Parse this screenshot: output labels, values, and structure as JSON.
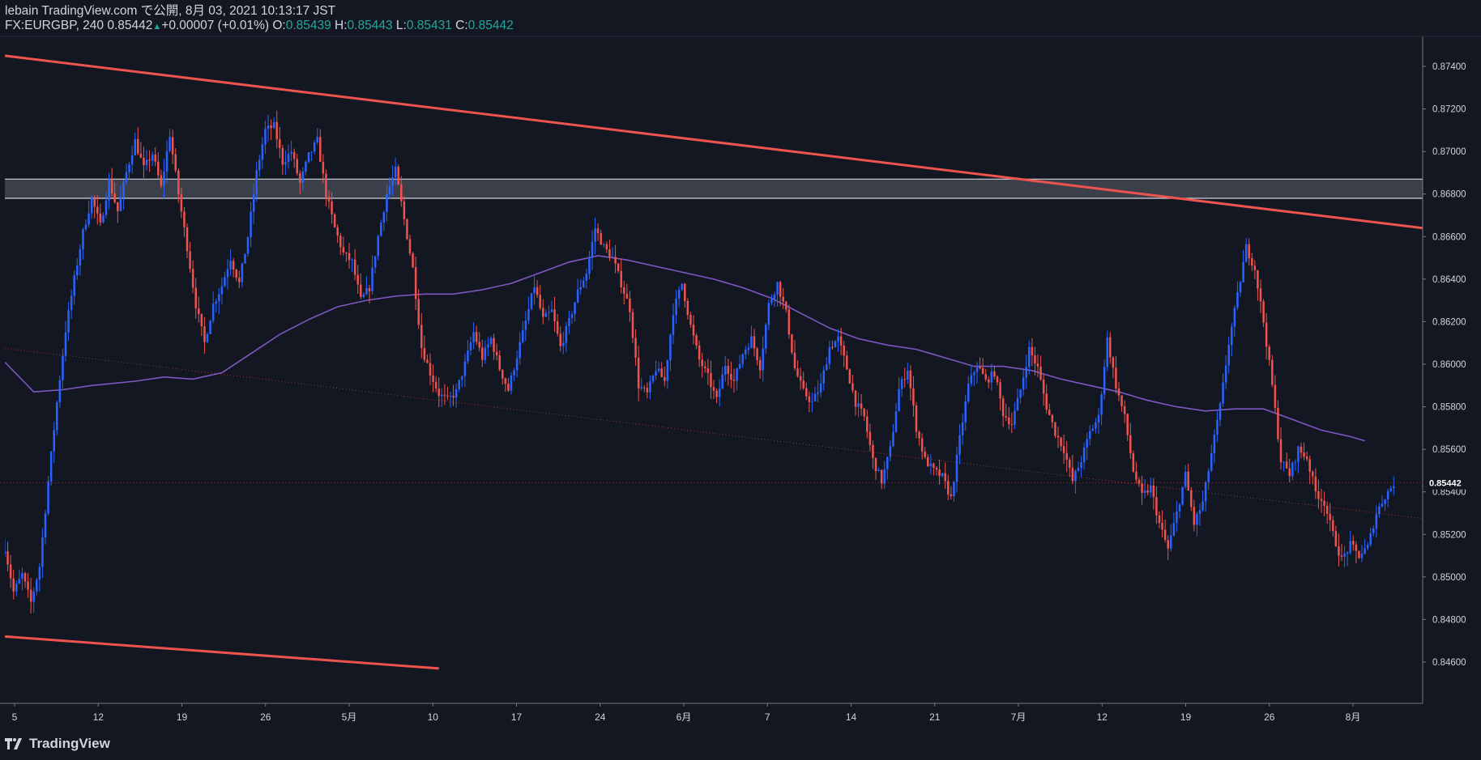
{
  "header": {
    "line1": "lebain TradingView.com で公開, 8月 03, 2021 10:13:17 JST",
    "symbol": "FX:EURGBP, 240",
    "last": "0.85442",
    "change": "+0.00007 (+0.01%)",
    "o_label": "O:",
    "o": "0.85439",
    "h_label": "H:",
    "h": "0.85443",
    "l_label": "L:",
    "l": "0.85431",
    "c_label": "C:",
    "c": "0.85442"
  },
  "brand": {
    "name": "TradingView",
    "icon": "tradingview-logo-icon"
  },
  "colors": {
    "background": "#131722",
    "up": "#2962ff",
    "down": "#ef5350",
    "trendline": "#ef5350",
    "ma": "#7e57c2",
    "zone_fill": "#434651",
    "zone_border": "#d1d4dc"
  },
  "chart_data": {
    "type": "candlestick",
    "symbol": "FX:EURGBP",
    "timeframe": "240",
    "ylim": [
      0.8452,
      0.8748
    ],
    "y_ticks": [
      "0.87400",
      "0.87200",
      "0.87000",
      "0.86800",
      "0.86600",
      "0.86400",
      "0.86200",
      "0.86000",
      "0.85800",
      "0.85600",
      "0.85400",
      "0.85200",
      "0.85000",
      "0.84800",
      "0.84600"
    ],
    "last_price_label": "0.85442",
    "x_ticks": [
      "5",
      "12",
      "19",
      "26",
      "5月",
      "10",
      "17",
      "24",
      "6月",
      "7",
      "14",
      "21",
      "7月",
      "12",
      "19",
      "26",
      "8月"
    ],
    "price_path": [
      [
        0,
        0.8514
      ],
      [
        3,
        0.8493
      ],
      [
        6,
        0.8501
      ],
      [
        9,
        0.8488
      ],
      [
        12,
        0.8505
      ],
      [
        15,
        0.8545
      ],
      [
        18,
        0.8582
      ],
      [
        21,
        0.8616
      ],
      [
        24,
        0.864
      ],
      [
        27,
        0.8662
      ],
      [
        30,
        0.8678
      ],
      [
        33,
        0.8665
      ],
      [
        36,
        0.8686
      ],
      [
        39,
        0.8672
      ],
      [
        42,
        0.869
      ],
      [
        45,
        0.8705
      ],
      [
        48,
        0.8692
      ],
      [
        51,
        0.8699
      ],
      [
        54,
        0.8683
      ],
      [
        57,
        0.8708
      ],
      [
        60,
        0.868
      ],
      [
        63,
        0.8655
      ],
      [
        66,
        0.8628
      ],
      [
        69,
        0.861
      ],
      [
        72,
        0.8628
      ],
      [
        75,
        0.8637
      ],
      [
        78,
        0.865
      ],
      [
        81,
        0.8638
      ],
      [
        84,
        0.866
      ],
      [
        87,
        0.869
      ],
      [
        90,
        0.871
      ],
      [
        93,
        0.8712
      ],
      [
        96,
        0.8695
      ],
      [
        99,
        0.87
      ],
      [
        102,
        0.8685
      ],
      [
        105,
        0.8698
      ],
      [
        108,
        0.8705
      ],
      [
        111,
        0.868
      ],
      [
        114,
        0.8664
      ],
      [
        117,
        0.8652
      ],
      [
        120,
        0.8648
      ],
      [
        123,
        0.863
      ],
      [
        126,
        0.8636
      ],
      [
        129,
        0.866
      ],
      [
        132,
        0.868
      ],
      [
        135,
        0.8691
      ],
      [
        138,
        0.8668
      ],
      [
        141,
        0.8645
      ],
      [
        144,
        0.8608
      ],
      [
        147,
        0.8596
      ],
      [
        150,
        0.8586
      ],
      [
        153,
        0.8583
      ],
      [
        156,
        0.8587
      ],
      [
        159,
        0.86
      ],
      [
        162,
        0.8615
      ],
      [
        165,
        0.8603
      ],
      [
        168,
        0.8612
      ],
      [
        171,
        0.8598
      ],
      [
        174,
        0.8588
      ],
      [
        177,
        0.8604
      ],
      [
        180,
        0.862
      ],
      [
        183,
        0.8637
      ],
      [
        186,
        0.8621
      ],
      [
        189,
        0.8625
      ],
      [
        192,
        0.8608
      ],
      [
        195,
        0.862
      ],
      [
        198,
        0.8634
      ],
      [
        201,
        0.8643
      ],
      [
        204,
        0.8664
      ],
      [
        207,
        0.8655
      ],
      [
        210,
        0.865
      ],
      [
        213,
        0.8638
      ],
      [
        216,
        0.8626
      ],
      [
        219,
        0.859
      ],
      [
        222,
        0.8586
      ],
      [
        225,
        0.8598
      ],
      [
        228,
        0.8592
      ],
      [
        231,
        0.8625
      ],
      [
        234,
        0.8638
      ],
      [
        237,
        0.8618
      ],
      [
        240,
        0.8602
      ],
      [
        243,
        0.8594
      ],
      [
        246,
        0.8583
      ],
      [
        249,
        0.86
      ],
      [
        252,
        0.8592
      ],
      [
        255,
        0.8605
      ],
      [
        258,
        0.8612
      ],
      [
        261,
        0.8599
      ],
      [
        264,
        0.8628
      ],
      [
        267,
        0.8638
      ],
      [
        270,
        0.8624
      ],
      [
        273,
        0.8598
      ],
      [
        276,
        0.8587
      ],
      [
        279,
        0.8582
      ],
      [
        282,
        0.859
      ],
      [
        285,
        0.8608
      ],
      [
        288,
        0.8612
      ],
      [
        291,
        0.8598
      ],
      [
        294,
        0.8582
      ],
      [
        297,
        0.8575
      ],
      [
        300,
        0.8555
      ],
      [
        303,
        0.8545
      ],
      [
        306,
        0.856
      ],
      [
        309,
        0.8588
      ],
      [
        312,
        0.8598
      ],
      [
        315,
        0.857
      ],
      [
        318,
        0.8555
      ],
      [
        321,
        0.855
      ],
      [
        324,
        0.8547
      ],
      [
        327,
        0.8537
      ],
      [
        330,
        0.8565
      ],
      [
        333,
        0.859
      ],
      [
        336,
        0.86
      ],
      [
        339,
        0.8592
      ],
      [
        342,
        0.8596
      ],
      [
        345,
        0.8577
      ],
      [
        348,
        0.8572
      ],
      [
        351,
        0.8588
      ],
      [
        354,
        0.8607
      ],
      [
        357,
        0.8598
      ],
      [
        360,
        0.858
      ],
      [
        363,
        0.8568
      ],
      [
        366,
        0.856
      ],
      [
        369,
        0.8545
      ],
      [
        372,
        0.8555
      ],
      [
        375,
        0.8568
      ],
      [
        378,
        0.8575
      ],
      [
        381,
        0.8612
      ],
      [
        384,
        0.859
      ],
      [
        387,
        0.8575
      ],
      [
        390,
        0.855
      ],
      [
        393,
        0.8538
      ],
      [
        396,
        0.8542
      ],
      [
        399,
        0.8525
      ],
      [
        402,
        0.8513
      ],
      [
        405,
        0.853
      ],
      [
        408,
        0.8548
      ],
      [
        411,
        0.8525
      ],
      [
        414,
        0.8535
      ],
      [
        417,
        0.8558
      ],
      [
        420,
        0.858
      ],
      [
        423,
        0.861
      ],
      [
        426,
        0.8632
      ],
      [
        429,
        0.8655
      ],
      [
        432,
        0.8645
      ],
      [
        435,
        0.862
      ],
      [
        438,
        0.859
      ],
      [
        441,
        0.8555
      ],
      [
        444,
        0.8548
      ],
      [
        447,
        0.856
      ],
      [
        450,
        0.8556
      ],
      [
        453,
        0.854
      ],
      [
        456,
        0.8535
      ],
      [
        459,
        0.852
      ],
      [
        462,
        0.8508
      ],
      [
        465,
        0.8515
      ],
      [
        468,
        0.851
      ],
      [
        471,
        0.8514
      ],
      [
        474,
        0.853
      ],
      [
        477,
        0.8538
      ],
      [
        480,
        0.8544
      ]
    ],
    "overlays": [
      {
        "name": "upper-trendline",
        "type": "line",
        "color": "#ef5350",
        "from": [
          0,
          0.8745
        ],
        "to": [
          490,
          0.8664
        ]
      },
      {
        "name": "lower-trendline",
        "type": "line",
        "color": "#ef5350",
        "from": [
          0,
          0.8472
        ],
        "to": [
          150,
          0.8457
        ]
      },
      {
        "name": "mid-dotted-line",
        "type": "dotted-line",
        "color": "#ef5350",
        "from": [
          0,
          0.86075
        ],
        "to": [
          490,
          0.85275
        ]
      },
      {
        "name": "resistance-zone",
        "type": "band",
        "y": [
          0.8678,
          0.8687
        ],
        "color": "#434651"
      },
      {
        "name": "moving-average",
        "type": "line",
        "color": "#7e57c2",
        "points": [
          [
            0,
            0.8601
          ],
          [
            10,
            0.8587
          ],
          [
            20,
            0.8588
          ],
          [
            30,
            0.859
          ],
          [
            45,
            0.8592
          ],
          [
            55,
            0.8594
          ],
          [
            65,
            0.8593
          ],
          [
            75,
            0.8596
          ],
          [
            85,
            0.8605
          ],
          [
            95,
            0.8614
          ],
          [
            105,
            0.8621
          ],
          [
            115,
            0.8627
          ],
          [
            125,
            0.863
          ],
          [
            135,
            0.8632
          ],
          [
            145,
            0.8633
          ],
          [
            155,
            0.8633
          ],
          [
            165,
            0.8635
          ],
          [
            175,
            0.8638
          ],
          [
            185,
            0.8643
          ],
          [
            195,
            0.8648
          ],
          [
            205,
            0.8651
          ],
          [
            215,
            0.8649
          ],
          [
            225,
            0.8646
          ],
          [
            235,
            0.8643
          ],
          [
            245,
            0.864
          ],
          [
            255,
            0.8636
          ],
          [
            265,
            0.8631
          ],
          [
            275,
            0.8624
          ],
          [
            285,
            0.8617
          ],
          [
            295,
            0.8612
          ],
          [
            305,
            0.8609
          ],
          [
            315,
            0.8607
          ],
          [
            325,
            0.8603
          ],
          [
            335,
            0.8599
          ],
          [
            345,
            0.8599
          ],
          [
            355,
            0.8597
          ],
          [
            365,
            0.8593
          ],
          [
            375,
            0.859
          ],
          [
            385,
            0.8587
          ],
          [
            395,
            0.8583
          ],
          [
            405,
            0.858
          ],
          [
            415,
            0.8578
          ],
          [
            425,
            0.8579
          ],
          [
            435,
            0.8579
          ],
          [
            445,
            0.8574
          ],
          [
            455,
            0.8569
          ],
          [
            465,
            0.8566
          ],
          [
            470,
            0.8564
          ]
        ]
      }
    ]
  }
}
